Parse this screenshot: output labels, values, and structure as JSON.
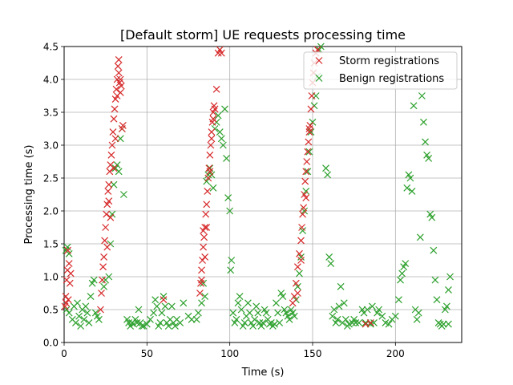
{
  "chart_data": {
    "type": "scatter",
    "title": "[Default storm] UE requests processing time",
    "xlabel": "Time (s)",
    "ylabel": "Processing time (s)",
    "xlim": [
      0,
      240
    ],
    "ylim": [
      0,
      4.5
    ],
    "x_ticks": [
      0,
      50,
      100,
      150,
      200
    ],
    "x_tick_labels": [
      "0",
      "50",
      "100",
      "150",
      "200"
    ],
    "y_ticks": [
      0,
      0.5,
      1.0,
      1.5,
      2.0,
      2.5,
      3.0,
      3.5,
      4.0,
      4.5
    ],
    "y_tick_labels": [
      "0.0",
      "0.5",
      "1.0",
      "1.5",
      "2.0",
      "2.5",
      "3.0",
      "3.5",
      "4.0",
      "4.5"
    ],
    "grid": true,
    "marker": "x",
    "legend_position": "upper right",
    "series": [
      {
        "name": "Storm registrations",
        "color": "#d62728",
        "points": [
          [
            0.5,
            0.55
          ],
          [
            1,
            0.7
          ],
          [
            1.5,
            0.95
          ],
          [
            2,
            1.1
          ],
          [
            2.5,
            0.65
          ],
          [
            3,
            1.2
          ],
          [
            3.5,
            0.9
          ],
          [
            4,
            1.05
          ],
          [
            2.2,
            1.4
          ],
          [
            1.2,
            0.6
          ],
          [
            22,
            0.5
          ],
          [
            22.5,
            0.75
          ],
          [
            23,
            0.95
          ],
          [
            23.5,
            1.15
          ],
          [
            24,
            1.3
          ],
          [
            24.5,
            1.55
          ],
          [
            25,
            1.75
          ],
          [
            25.5,
            1.95
          ],
          [
            26,
            2.1
          ],
          [
            26.5,
            2.3
          ],
          [
            27,
            2.4
          ],
          [
            27.5,
            2.6
          ],
          [
            28,
            2.7
          ],
          [
            28.5,
            2.85
          ],
          [
            29,
            3.0
          ],
          [
            29.5,
            3.2
          ],
          [
            30,
            3.4
          ],
          [
            30.5,
            3.55
          ],
          [
            31,
            3.7
          ],
          [
            31.5,
            3.85
          ],
          [
            32,
            4.0
          ],
          [
            32.5,
            4.2
          ],
          [
            33,
            4.3
          ],
          [
            33.5,
            3.95
          ],
          [
            34,
            3.8
          ],
          [
            34.5,
            3.9
          ],
          [
            35,
            3.25
          ],
          [
            35.5,
            3.3
          ],
          [
            26,
            1.45
          ],
          [
            27,
            2.15
          ],
          [
            28,
            1.9
          ],
          [
            30,
            2.65
          ],
          [
            31,
            3.1
          ],
          [
            33,
            4.1
          ],
          [
            34,
            4.0
          ],
          [
            32,
            3.75
          ],
          [
            82,
            0.75
          ],
          [
            82.5,
            0.9
          ],
          [
            83,
            1.1
          ],
          [
            83.5,
            1.25
          ],
          [
            84,
            1.45
          ],
          [
            84.5,
            1.6
          ],
          [
            85,
            1.75
          ],
          [
            85.5,
            1.95
          ],
          [
            86,
            2.1
          ],
          [
            86.5,
            2.3
          ],
          [
            87,
            2.5
          ],
          [
            87.5,
            2.65
          ],
          [
            88,
            2.85
          ],
          [
            88.5,
            3.0
          ],
          [
            89,
            3.2
          ],
          [
            89.5,
            3.35
          ],
          [
            90,
            3.5
          ],
          [
            90.5,
            3.6
          ],
          [
            91,
            3.55
          ],
          [
            92,
            3.85
          ],
          [
            93,
            4.4
          ],
          [
            94,
            4.45
          ],
          [
            95,
            4.4
          ],
          [
            84,
            1.7
          ],
          [
            86,
            1.75
          ],
          [
            88,
            2.6
          ],
          [
            89,
            3.1
          ],
          [
            90,
            3.4
          ],
          [
            83,
            0.95
          ],
          [
            85,
            1.3
          ],
          [
            138,
            0.6
          ],
          [
            139,
            0.7
          ],
          [
            140,
            0.9
          ],
          [
            141,
            1.15
          ],
          [
            142,
            1.35
          ],
          [
            143,
            1.55
          ],
          [
            143.5,
            1.75
          ],
          [
            144,
            1.95
          ],
          [
            144.5,
            2.05
          ],
          [
            145,
            2.25
          ],
          [
            145.5,
            2.45
          ],
          [
            146,
            2.6
          ],
          [
            146.5,
            2.75
          ],
          [
            147,
            2.9
          ],
          [
            147.5,
            3.05
          ],
          [
            148,
            3.2
          ],
          [
            148.5,
            3.3
          ],
          [
            149,
            3.55
          ],
          [
            149.5,
            3.75
          ],
          [
            150,
            3.95
          ],
          [
            150.5,
            4.1
          ],
          [
            151,
            4.25
          ],
          [
            152,
            4.4
          ],
          [
            153,
            4.45
          ],
          [
            141,
            0.75
          ],
          [
            143,
            1.25
          ],
          [
            146,
            2.2
          ],
          [
            148,
            3.25
          ],
          [
            182,
            0.28
          ],
          [
            185,
            0.3
          ],
          [
            60,
            0.65
          ]
        ]
      },
      {
        "name": "Benign registrations",
        "color": "#2ca02c",
        "points": [
          [
            1,
            1.4
          ],
          [
            2,
            1.45
          ],
          [
            3,
            1.35
          ],
          [
            1.5,
            0.5
          ],
          [
            3,
            0.45
          ],
          [
            5,
            0.35
          ],
          [
            6,
            0.55
          ],
          [
            7,
            0.3
          ],
          [
            8,
            0.6
          ],
          [
            9,
            0.4
          ],
          [
            10,
            0.25
          ],
          [
            11,
            0.5
          ],
          [
            12,
            0.35
          ],
          [
            13,
            0.55
          ],
          [
            14,
            0.45
          ],
          [
            15,
            0.3
          ],
          [
            16,
            0.7
          ],
          [
            17,
            0.9
          ],
          [
            18,
            0.95
          ],
          [
            19,
            0.45
          ],
          [
            20,
            0.4
          ],
          [
            21,
            0.35
          ],
          [
            24,
            0.85
          ],
          [
            25,
            0.95
          ],
          [
            27,
            1.0
          ],
          [
            28,
            1.5
          ],
          [
            29,
            1.95
          ],
          [
            30,
            2.4
          ],
          [
            31,
            2.65
          ],
          [
            32,
            2.7
          ],
          [
            33,
            2.6
          ],
          [
            34,
            3.1
          ],
          [
            35,
            3.25
          ],
          [
            36,
            2.25
          ],
          [
            38,
            0.35
          ],
          [
            40,
            0.25
          ],
          [
            41,
            0.3
          ],
          [
            42,
            0.28
          ],
          [
            43,
            0.35
          ],
          [
            44,
            0.3
          ],
          [
            45,
            0.5
          ],
          [
            46,
            0.3
          ],
          [
            47,
            0.25
          ],
          [
            50,
            0.28
          ],
          [
            52,
            0.35
          ],
          [
            54,
            0.45
          ],
          [
            55,
            0.65
          ],
          [
            56,
            0.55
          ],
          [
            57,
            0.25
          ],
          [
            58,
            0.3
          ],
          [
            59,
            0.45
          ],
          [
            60,
            0.7
          ],
          [
            61,
            0.55
          ],
          [
            62,
            0.3
          ],
          [
            63,
            0.25
          ],
          [
            64,
            0.35
          ],
          [
            65,
            0.55
          ],
          [
            66,
            0.3
          ],
          [
            67,
            0.25
          ],
          [
            68,
            0.35
          ],
          [
            70,
            0.3
          ],
          [
            72,
            0.6
          ],
          [
            75,
            0.4
          ],
          [
            77,
            0.35
          ],
          [
            80,
            0.35
          ],
          [
            81,
            0.45
          ],
          [
            83,
            0.6
          ],
          [
            84,
            0.9
          ],
          [
            85,
            0.7
          ],
          [
            86,
            2.45
          ],
          [
            87,
            2.55
          ],
          [
            88,
            2.65
          ],
          [
            89,
            2.55
          ],
          [
            90,
            2.35
          ],
          [
            91,
            3.25
          ],
          [
            92,
            3.35
          ],
          [
            93,
            3.45
          ],
          [
            94,
            3.2
          ],
          [
            95,
            3.1
          ],
          [
            96,
            3.0
          ],
          [
            97,
            3.55
          ],
          [
            98,
            2.8
          ],
          [
            99,
            2.2
          ],
          [
            100,
            2.0
          ],
          [
            101,
            1.25
          ],
          [
            100.5,
            1.1
          ],
          [
            102,
            0.45
          ],
          [
            103,
            0.3
          ],
          [
            104,
            0.35
          ],
          [
            105,
            0.6
          ],
          [
            106,
            0.7
          ],
          [
            107,
            0.5
          ],
          [
            108,
            0.25
          ],
          [
            109,
            0.3
          ],
          [
            110,
            0.4
          ],
          [
            111,
            0.6
          ],
          [
            112,
            0.45
          ],
          [
            113,
            0.3
          ],
          [
            114,
            0.25
          ],
          [
            115,
            0.35
          ],
          [
            116,
            0.55
          ],
          [
            117,
            0.45
          ],
          [
            118,
            0.3
          ],
          [
            119,
            0.25
          ],
          [
            120,
            0.3
          ],
          [
            121,
            0.5
          ],
          [
            122,
            0.45
          ],
          [
            123,
            0.35
          ],
          [
            124,
            0.28
          ],
          [
            125,
            0.3
          ],
          [
            126,
            0.25
          ],
          [
            127,
            0.28
          ],
          [
            128,
            0.6
          ],
          [
            129,
            0.45
          ],
          [
            130,
            0.3
          ],
          [
            131,
            0.75
          ],
          [
            132,
            0.7
          ],
          [
            133,
            0.5
          ],
          [
            134,
            0.45
          ],
          [
            135,
            0.4
          ],
          [
            136,
            0.35
          ],
          [
            137,
            0.5
          ],
          [
            138,
            0.45
          ],
          [
            139,
            0.4
          ],
          [
            140,
            0.65
          ],
          [
            141,
            0.85
          ],
          [
            142,
            1.05
          ],
          [
            143,
            1.3
          ],
          [
            144,
            1.7
          ],
          [
            145,
            2.0
          ],
          [
            146,
            2.3
          ],
          [
            147,
            2.6
          ],
          [
            148,
            2.9
          ],
          [
            149,
            3.2
          ],
          [
            150,
            3.35
          ],
          [
            151,
            3.6
          ],
          [
            152,
            3.75
          ],
          [
            153,
            4.05
          ],
          [
            154,
            4.45
          ],
          [
            155,
            4.5
          ],
          [
            158,
            2.65
          ],
          [
            159,
            2.55
          ],
          [
            160,
            1.3
          ],
          [
            161,
            1.2
          ],
          [
            162,
            0.4
          ],
          [
            163,
            0.5
          ],
          [
            164,
            0.3
          ],
          [
            165,
            0.35
          ],
          [
            166,
            0.55
          ],
          [
            167,
            0.85
          ],
          [
            168,
            0.3
          ],
          [
            169,
            0.6
          ],
          [
            170,
            0.35
          ],
          [
            171,
            0.25
          ],
          [
            172,
            0.28
          ],
          [
            174,
            0.3
          ],
          [
            175,
            0.35
          ],
          [
            176,
            0.3
          ],
          [
            178,
            0.3
          ],
          [
            180,
            0.5
          ],
          [
            181,
            0.45
          ],
          [
            182,
            0.3
          ],
          [
            183,
            0.5
          ],
          [
            185,
            0.28
          ],
          [
            186,
            0.55
          ],
          [
            187,
            0.3
          ],
          [
            189,
            0.45
          ],
          [
            190,
            0.5
          ],
          [
            192,
            0.4
          ],
          [
            194,
            0.3
          ],
          [
            196,
            0.28
          ],
          [
            198,
            0.35
          ],
          [
            200,
            0.4
          ],
          [
            202,
            0.65
          ],
          [
            203,
            0.95
          ],
          [
            204,
            1.05
          ],
          [
            205,
            1.15
          ],
          [
            206,
            1.2
          ],
          [
            207,
            2.35
          ],
          [
            208,
            2.55
          ],
          [
            209,
            2.5
          ],
          [
            210,
            2.3
          ],
          [
            211,
            3.6
          ],
          [
            212,
            0.5
          ],
          [
            213,
            0.35
          ],
          [
            214,
            0.45
          ],
          [
            215,
            1.6
          ],
          [
            216,
            3.75
          ],
          [
            217,
            3.35
          ],
          [
            218,
            3.05
          ],
          [
            219,
            2.85
          ],
          [
            220,
            2.8
          ],
          [
            221,
            1.95
          ],
          [
            222,
            1.9
          ],
          [
            223,
            1.4
          ],
          [
            224,
            0.95
          ],
          [
            225,
            0.65
          ],
          [
            226,
            0.3
          ],
          [
            227,
            0.28
          ],
          [
            228,
            0.25
          ],
          [
            229,
            0.28
          ],
          [
            230,
            0.5
          ],
          [
            231,
            0.55
          ],
          [
            232,
            0.8
          ],
          [
            233,
            1.0
          ],
          [
            232,
            0.28
          ],
          [
            39,
            0.3
          ],
          [
            48,
            0.25
          ]
        ]
      }
    ]
  }
}
